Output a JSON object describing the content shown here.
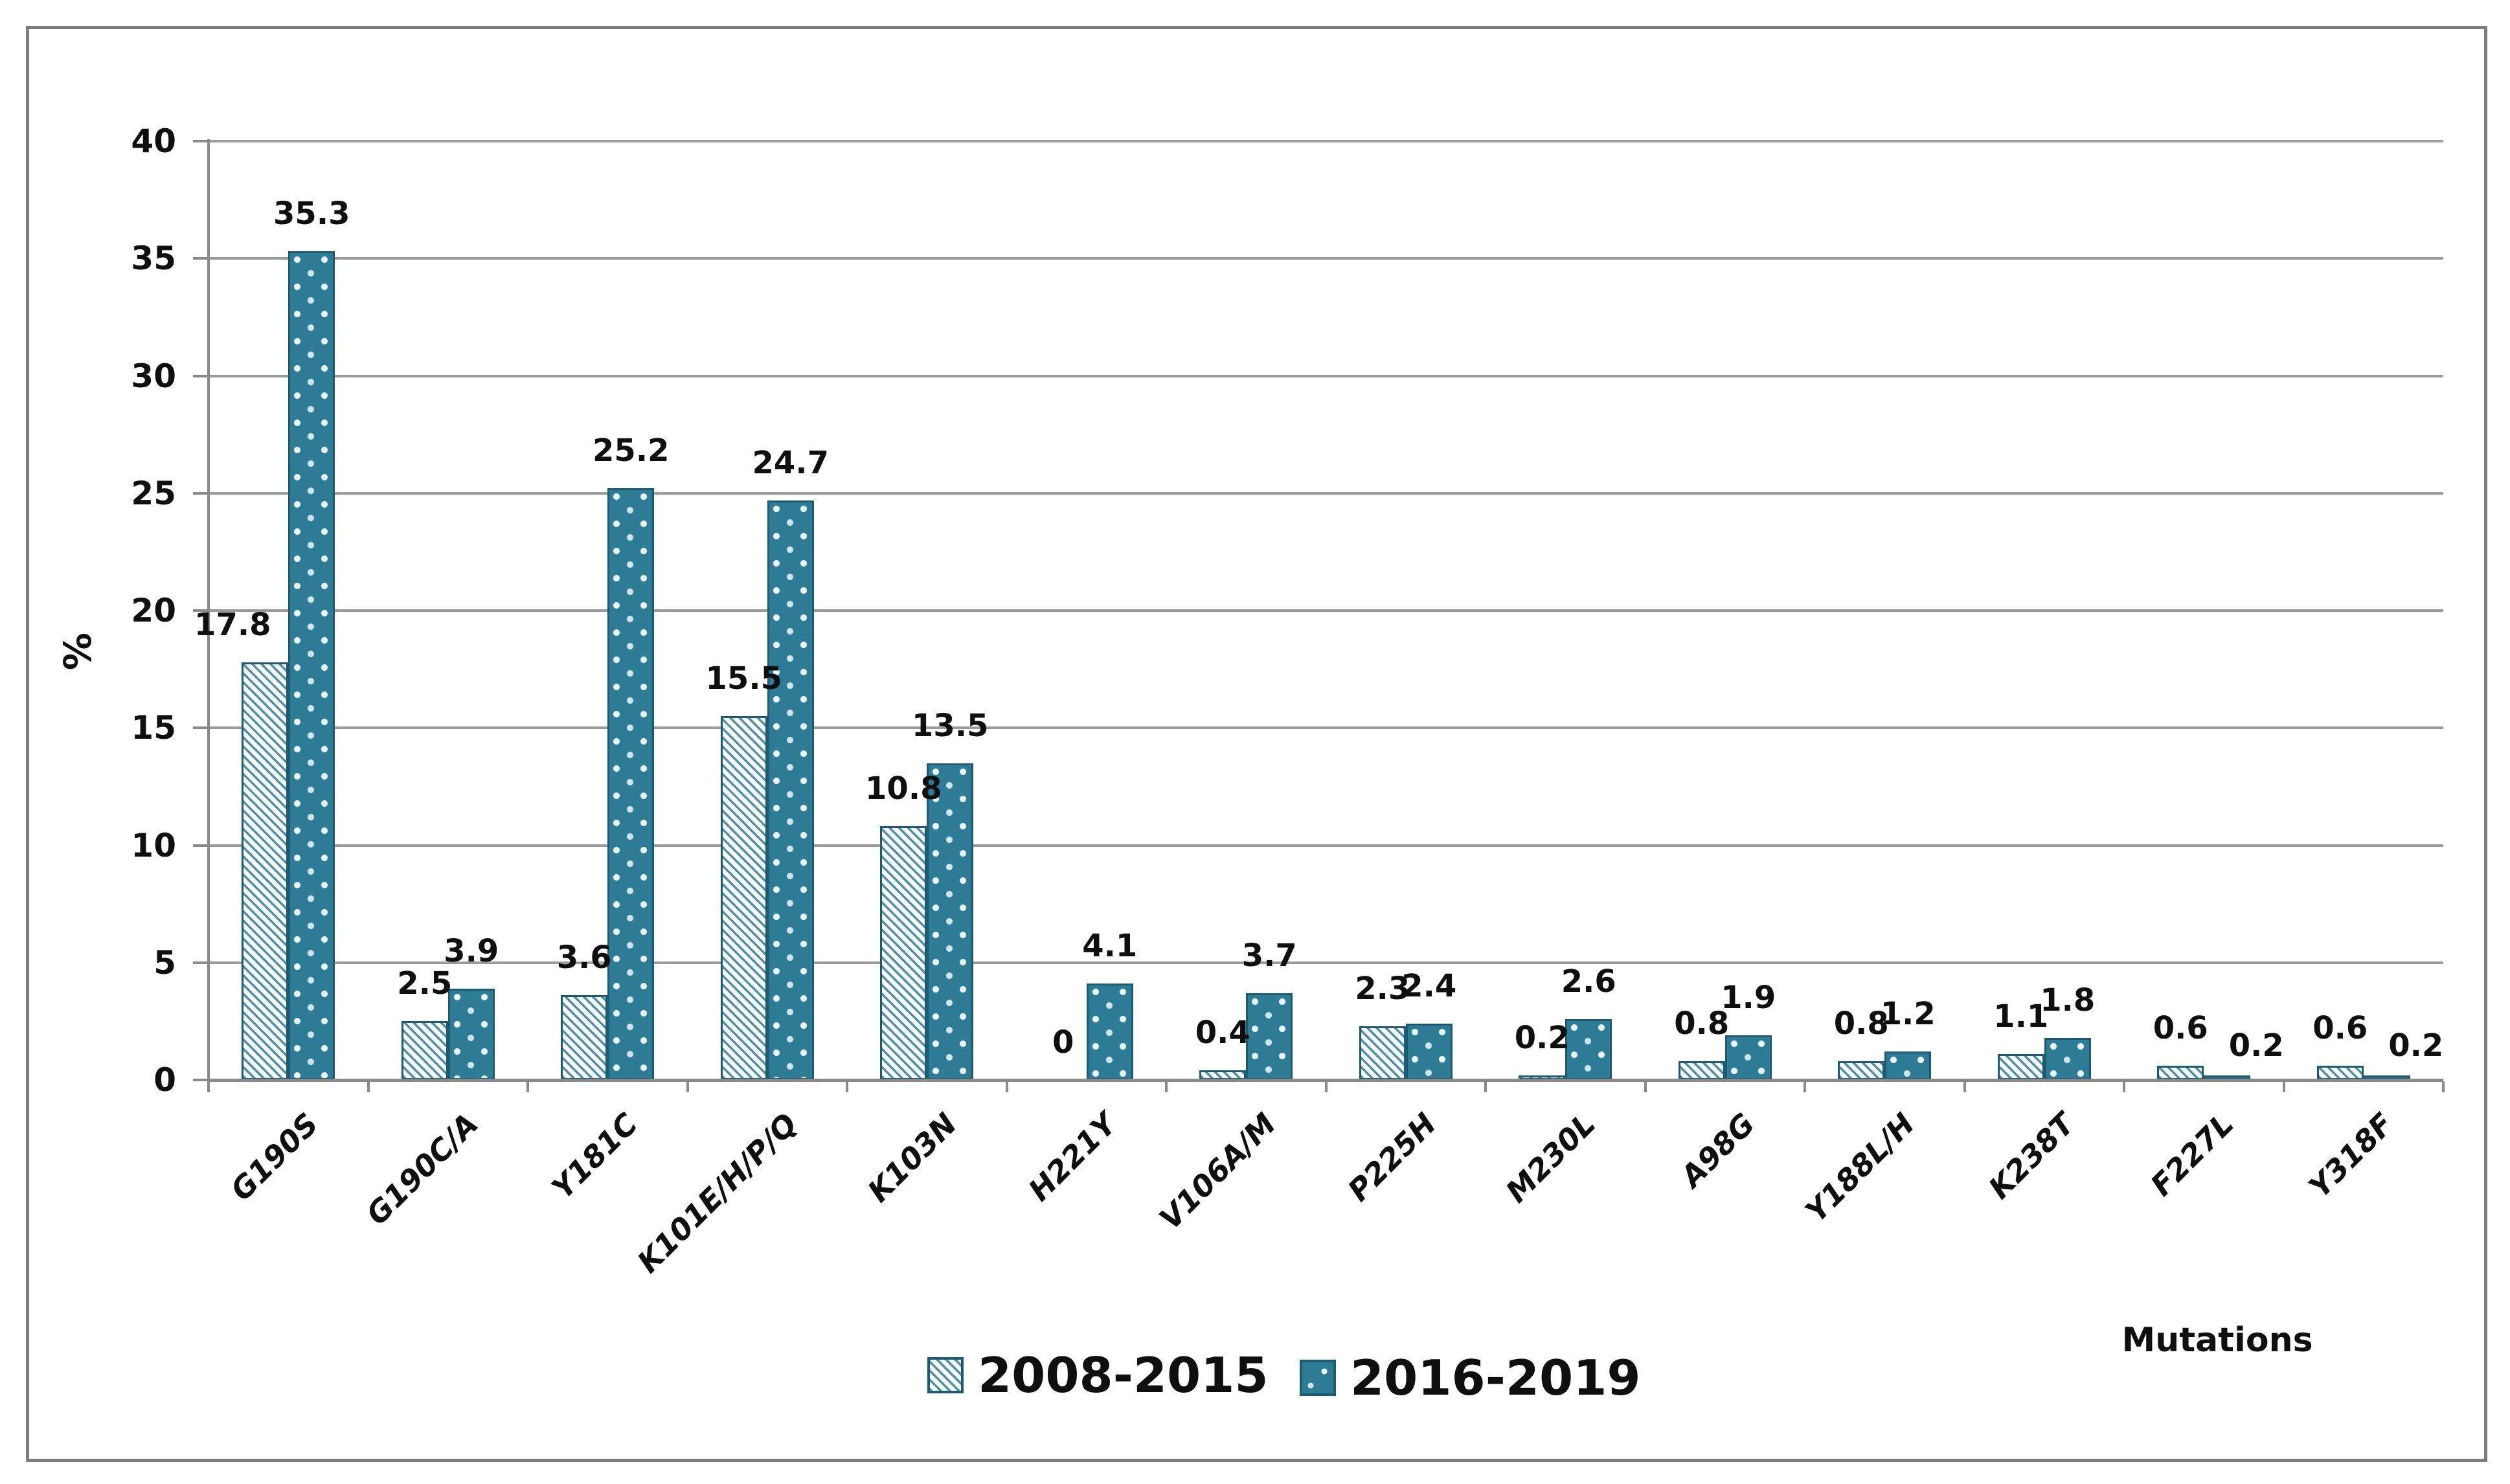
{
  "figure": {
    "background": "#ffffff",
    "border_color": "#7d7d7d"
  },
  "chart_data": {
    "type": "bar",
    "title": "",
    "xlabel": "Mutations",
    "ylabel": "%",
    "ylim": [
      0,
      40
    ],
    "ytick_step": 5,
    "yticks": [
      "0",
      "5",
      "10",
      "15",
      "20",
      "25",
      "30",
      "35",
      "40"
    ],
    "grid": true,
    "legend_position": "bottom-center",
    "categories": [
      "G190S",
      "G190C/A",
      "Y181C",
      "K101E/H/P/Q",
      "K103N",
      "H221Y",
      "V106A/M",
      "P225H",
      "M230L",
      "A98G",
      "Y188L/H",
      "K238T",
      "F227L",
      "Y318F"
    ],
    "series": [
      {
        "name": "2008-2015",
        "pattern": "diagonal-hatch",
        "values": [
          17.8,
          2.5,
          3.6,
          15.5,
          10.8,
          0,
          0.4,
          2.3,
          0.2,
          0.8,
          0.8,
          1.1,
          0.6,
          0.6
        ],
        "labels": [
          "17.8",
          "2.5",
          "3.6",
          "15.5",
          "10.8",
          "0",
          "0.4",
          "2.3",
          "0.2",
          "0.8",
          "0.8",
          "1.1",
          "0.6",
          "0.6"
        ]
      },
      {
        "name": "2016-2019",
        "pattern": "dots",
        "values": [
          35.3,
          3.9,
          25.2,
          24.7,
          13.5,
          4.1,
          3.7,
          2.4,
          2.6,
          1.9,
          1.2,
          1.8,
          0.2,
          0.2
        ],
        "labels": [
          "35.3",
          "3.9",
          "25.2",
          "24.7",
          "13.5",
          "4.1",
          "3.7",
          "2.4",
          "2.6",
          "1.9",
          "1.2",
          "1.8",
          "0.2",
          "0.2"
        ]
      }
    ],
    "colors": {
      "series_2016_2019_fill": "#2e7b96",
      "bar_border": "#1d5b72",
      "hatch_stripe": "#4d92a9",
      "gridline": "#9b9b9b",
      "axis": "#8a8a8a",
      "text": "#0f0f0f"
    }
  }
}
